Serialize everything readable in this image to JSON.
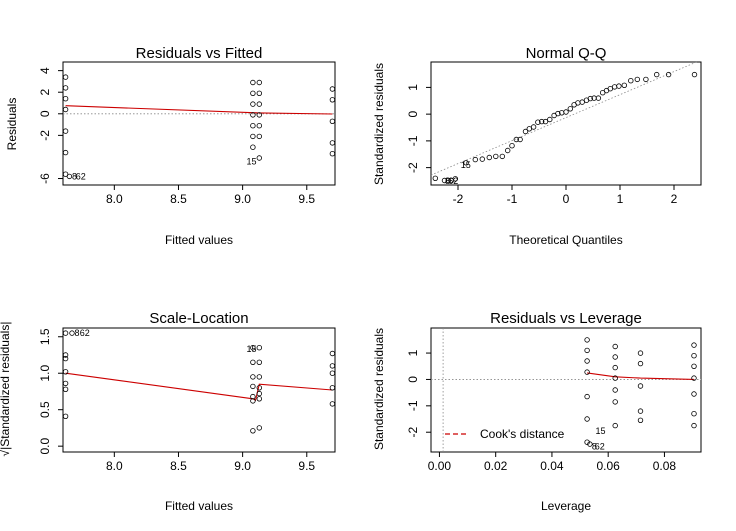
{
  "chart_data": [
    {
      "id": "rvf",
      "type": "scatter",
      "title": "Residuals vs Fitted",
      "xlabel": "Fitted values",
      "ylabel": "Residuals",
      "xlim": [
        7.6,
        9.72
      ],
      "ylim": [
        -6.6,
        4.8
      ],
      "xticks": [
        8.0,
        8.5,
        9.0,
        9.5
      ],
      "xtick_labels": [
        "8.0",
        "8.5",
        "9.0",
        "9.5"
      ],
      "yticks": [
        4,
        2,
        0,
        -2,
        -6
      ],
      "ytick_labels": [
        "4",
        "2",
        "0",
        "-2",
        "-6"
      ],
      "reference_line": 0,
      "points": [
        {
          "x": 7.62,
          "y": 3.4
        },
        {
          "x": 7.62,
          "y": 2.4
        },
        {
          "x": 7.62,
          "y": 1.4
        },
        {
          "x": 7.62,
          "y": 0.4
        },
        {
          "x": 7.62,
          "y": -1.6
        },
        {
          "x": 7.62,
          "y": -3.6
        },
        {
          "x": 7.62,
          "y": -5.6
        },
        {
          "x": 7.65,
          "y": -5.8
        },
        {
          "x": 9.08,
          "y": 2.9
        },
        {
          "x": 9.08,
          "y": 1.9
        },
        {
          "x": 9.08,
          "y": 0.9
        },
        {
          "x": 9.08,
          "y": -0.1
        },
        {
          "x": 9.08,
          "y": -1.1
        },
        {
          "x": 9.08,
          "y": -2.1
        },
        {
          "x": 9.08,
          "y": -3.1
        },
        {
          "x": 9.13,
          "y": 2.9
        },
        {
          "x": 9.13,
          "y": 1.9
        },
        {
          "x": 9.13,
          "y": 0.9
        },
        {
          "x": 9.13,
          "y": -0.1
        },
        {
          "x": 9.13,
          "y": -1.1
        },
        {
          "x": 9.13,
          "y": -2.1
        },
        {
          "x": 9.13,
          "y": -4.1
        },
        {
          "x": 9.7,
          "y": 2.3
        },
        {
          "x": 9.7,
          "y": 1.3
        },
        {
          "x": 9.7,
          "y": -0.7
        },
        {
          "x": 9.7,
          "y": -2.7
        },
        {
          "x": 9.7,
          "y": -3.7
        }
      ],
      "smooth_line": [
        [
          7.62,
          0.75
        ],
        [
          9.08,
          0.1
        ],
        [
          9.13,
          0.08
        ],
        [
          9.7,
          -0.02
        ]
      ],
      "point_labels": [
        {
          "text": "15",
          "x": 9.03,
          "y": -4.4
        },
        {
          "text": "8",
          "x": 7.67,
          "y": -5.8
        },
        {
          "text": "62",
          "x": 7.7,
          "y": -5.8
        }
      ]
    },
    {
      "id": "qq",
      "type": "scatter",
      "title": "Normal Q-Q",
      "xlabel": "Theoretical Quantiles",
      "ylabel": "Standardized residuals",
      "xlim": [
        -2.5,
        2.5
      ],
      "ylim": [
        -2.65,
        1.95
      ],
      "xticks": [
        -2,
        -1,
        0,
        1,
        2
      ],
      "xtick_labels": [
        "-2",
        "-1",
        "0",
        "1",
        "2"
      ],
      "yticks": [
        1,
        0,
        -1,
        -2
      ],
      "ytick_labels": [
        "1",
        "0",
        "-1",
        "-2"
      ],
      "reference_line": [
        [
          -2.5,
          -2.28
        ],
        [
          2.5,
          2.02
        ]
      ],
      "points": [
        {
          "x": -2.42,
          "y": -2.4
        },
        {
          "x": -2.25,
          "y": -2.48
        },
        {
          "x": -2.18,
          "y": -2.48
        },
        {
          "x": -2.12,
          "y": -2.48
        },
        {
          "x": -2.05,
          "y": -2.42
        },
        {
          "x": -1.85,
          "y": -1.82
        },
        {
          "x": -1.68,
          "y": -1.7
        },
        {
          "x": -1.55,
          "y": -1.68
        },
        {
          "x": -1.42,
          "y": -1.62
        },
        {
          "x": -1.3,
          "y": -1.58
        },
        {
          "x": -1.18,
          "y": -1.58
        },
        {
          "x": -1.08,
          "y": -1.36
        },
        {
          "x": -1.0,
          "y": -1.18
        },
        {
          "x": -0.92,
          "y": -0.95
        },
        {
          "x": -0.85,
          "y": -0.95
        },
        {
          "x": -0.75,
          "y": -0.65
        },
        {
          "x": -0.68,
          "y": -0.55
        },
        {
          "x": -0.6,
          "y": -0.48
        },
        {
          "x": -0.52,
          "y": -0.3
        },
        {
          "x": -0.45,
          "y": -0.28
        },
        {
          "x": -0.38,
          "y": -0.28
        },
        {
          "x": -0.3,
          "y": -0.2
        },
        {
          "x": -0.22,
          "y": -0.05
        },
        {
          "x": -0.15,
          "y": 0.02
        },
        {
          "x": -0.08,
          "y": 0.05
        },
        {
          "x": 0.0,
          "y": 0.08
        },
        {
          "x": 0.08,
          "y": 0.2
        },
        {
          "x": 0.15,
          "y": 0.35
        },
        {
          "x": 0.22,
          "y": 0.42
        },
        {
          "x": 0.3,
          "y": 0.45
        },
        {
          "x": 0.38,
          "y": 0.52
        },
        {
          "x": 0.45,
          "y": 0.58
        },
        {
          "x": 0.52,
          "y": 0.6
        },
        {
          "x": 0.6,
          "y": 0.6
        },
        {
          "x": 0.68,
          "y": 0.8
        },
        {
          "x": 0.75,
          "y": 0.88
        },
        {
          "x": 0.82,
          "y": 0.95
        },
        {
          "x": 0.9,
          "y": 1.02
        },
        {
          "x": 0.98,
          "y": 1.05
        },
        {
          "x": 1.08,
          "y": 1.08
        },
        {
          "x": 1.2,
          "y": 1.25
        },
        {
          "x": 1.32,
          "y": 1.3
        },
        {
          "x": 1.48,
          "y": 1.3
        },
        {
          "x": 1.68,
          "y": 1.48
        },
        {
          "x": 1.9,
          "y": 1.48
        },
        {
          "x": 2.38,
          "y": 1.48
        }
      ],
      "point_labels": [
        {
          "text": "15",
          "x": -1.95,
          "y": -1.9
        },
        {
          "text": "8",
          "x": -2.24,
          "y": -2.5
        },
        {
          "text": "62",
          "x": -2.18,
          "y": -2.5
        }
      ]
    },
    {
      "id": "sl",
      "type": "scatter",
      "title": "Scale-Location",
      "xlabel": "Fitted values",
      "ylabel": "√|Standardized residuals|",
      "xlim": [
        7.6,
        9.72
      ],
      "ylim": [
        -0.08,
        1.62
      ],
      "xticks": [
        8.0,
        8.5,
        9.0,
        9.5
      ],
      "xtick_labels": [
        "8.0",
        "8.5",
        "9.0",
        "9.5"
      ],
      "yticks": [
        0.0,
        0.5,
        1.0,
        1.5
      ],
      "ytick_labels": [
        "0.0",
        "0.5",
        "1.0",
        "1.5"
      ],
      "points": [
        {
          "x": 7.62,
          "y": 1.55
        },
        {
          "x": 7.62,
          "y": 1.25
        },
        {
          "x": 7.62,
          "y": 1.2
        },
        {
          "x": 7.62,
          "y": 1.02
        },
        {
          "x": 7.62,
          "y": 0.86
        },
        {
          "x": 7.62,
          "y": 0.78
        },
        {
          "x": 7.62,
          "y": 0.41
        },
        {
          "x": 7.67,
          "y": 1.55
        },
        {
          "x": 9.08,
          "y": 1.35
        },
        {
          "x": 9.08,
          "y": 1.15
        },
        {
          "x": 9.08,
          "y": 0.95
        },
        {
          "x": 9.08,
          "y": 0.82
        },
        {
          "x": 9.08,
          "y": 0.68
        },
        {
          "x": 9.08,
          "y": 0.62
        },
        {
          "x": 9.08,
          "y": 0.21
        },
        {
          "x": 9.13,
          "y": 1.35
        },
        {
          "x": 9.13,
          "y": 1.15
        },
        {
          "x": 9.13,
          "y": 0.95
        },
        {
          "x": 9.13,
          "y": 0.8
        },
        {
          "x": 9.13,
          "y": 0.72
        },
        {
          "x": 9.13,
          "y": 0.65
        },
        {
          "x": 9.13,
          "y": 0.25
        },
        {
          "x": 9.7,
          "y": 1.27
        },
        {
          "x": 9.7,
          "y": 1.1
        },
        {
          "x": 9.7,
          "y": 1.0
        },
        {
          "x": 9.7,
          "y": 0.8
        },
        {
          "x": 9.7,
          "y": 0.58
        }
      ],
      "smooth_line": [
        [
          7.62,
          1.0
        ],
        [
          9.08,
          0.65
        ],
        [
          9.1,
          0.63
        ],
        [
          9.13,
          0.85
        ],
        [
          9.7,
          0.77
        ]
      ],
      "point_labels": [
        {
          "text": "15",
          "x": 9.03,
          "y": 1.33
        },
        {
          "text": "8",
          "x": 7.69,
          "y": 1.55
        },
        {
          "text": "62",
          "x": 7.73,
          "y": 1.55
        }
      ]
    },
    {
      "id": "rvl",
      "type": "scatter",
      "title": "Residuals vs Leverage",
      "xlabel": "Leverage",
      "ylabel": "Standardized residuals",
      "xlim": [
        -0.003,
        0.093
      ],
      "ylim": [
        -2.75,
        1.95
      ],
      "xticks": [
        0.0,
        0.02,
        0.04,
        0.06,
        0.08
      ],
      "xtick_labels": [
        "0.00",
        "0.02",
        "0.04",
        "0.06",
        "0.08"
      ],
      "yticks": [
        1,
        0,
        -1,
        -2
      ],
      "ytick_labels": [
        "1",
        "0",
        "-1",
        "-2"
      ],
      "reference_line": 0,
      "points": [
        {
          "x": 0.0525,
          "y": 1.5
        },
        {
          "x": 0.0525,
          "y": 1.1
        },
        {
          "x": 0.0525,
          "y": 0.7
        },
        {
          "x": 0.0525,
          "y": 0.28
        },
        {
          "x": 0.0525,
          "y": -0.65
        },
        {
          "x": 0.0525,
          "y": -1.5
        },
        {
          "x": 0.0525,
          "y": -2.38
        },
        {
          "x": 0.0535,
          "y": -2.45
        },
        {
          "x": 0.0625,
          "y": 1.25
        },
        {
          "x": 0.0625,
          "y": 0.85
        },
        {
          "x": 0.0625,
          "y": 0.45
        },
        {
          "x": 0.0625,
          "y": 0.05
        },
        {
          "x": 0.0625,
          "y": -0.4
        },
        {
          "x": 0.0625,
          "y": -0.85
        },
        {
          "x": 0.0625,
          "y": -1.75
        },
        {
          "x": 0.0715,
          "y": 1.0
        },
        {
          "x": 0.0715,
          "y": 0.6
        },
        {
          "x": 0.0715,
          "y": -0.25
        },
        {
          "x": 0.0715,
          "y": -1.2
        },
        {
          "x": 0.0715,
          "y": -1.55
        },
        {
          "x": 0.0905,
          "y": 1.3
        },
        {
          "x": 0.0905,
          "y": 0.9
        },
        {
          "x": 0.0905,
          "y": 0.5
        },
        {
          "x": 0.0905,
          "y": 0.05
        },
        {
          "x": 0.0905,
          "y": -0.55
        },
        {
          "x": 0.0905,
          "y": -1.3
        },
        {
          "x": 0.0905,
          "y": -1.75
        }
      ],
      "smooth_line": [
        [
          0.0525,
          0.25
        ],
        [
          0.0625,
          0.1
        ],
        [
          0.0715,
          0.05
        ],
        [
          0.0905,
          0.0
        ]
      ],
      "point_labels": [
        {
          "text": "15",
          "x": 0.0555,
          "y": -1.95
        },
        {
          "text": "8",
          "x": 0.0542,
          "y": -2.55
        },
        {
          "text": "62",
          "x": 0.0552,
          "y": -2.55
        }
      ],
      "legend": {
        "label": "Cook's distance",
        "placement": "bottom-left",
        "color": "#cc0000",
        "linestyle": "dashed"
      }
    }
  ],
  "colors": {
    "smooth": "#cc0000",
    "reference": "#888888",
    "points": "#000000"
  }
}
